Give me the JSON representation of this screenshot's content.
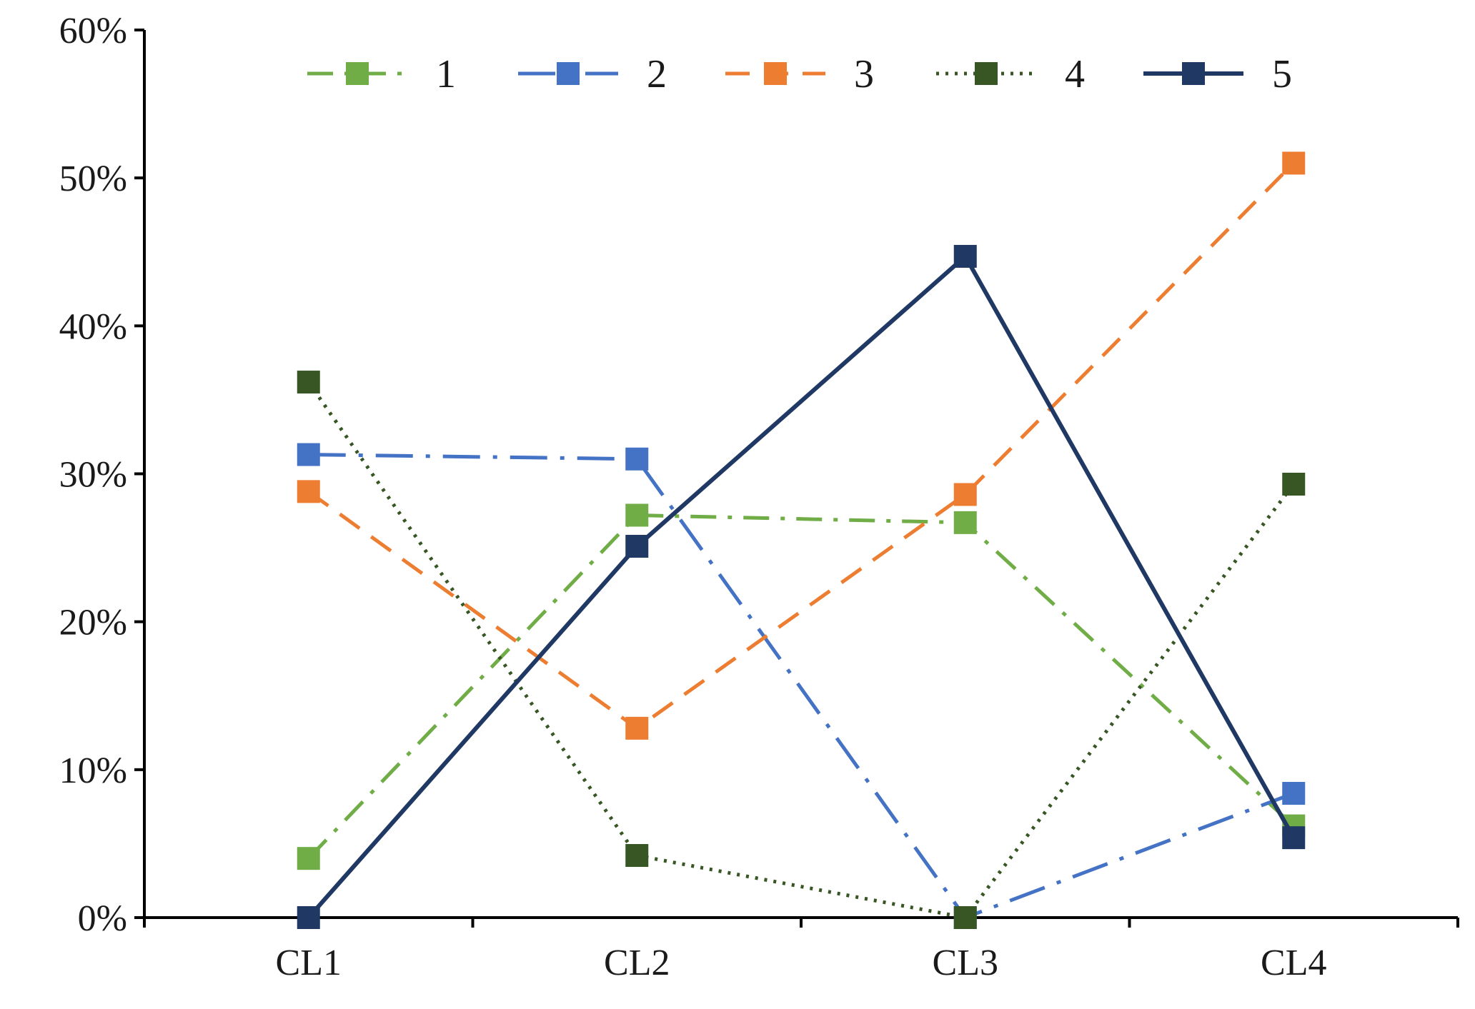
{
  "chart_data": {
    "type": "line",
    "categories": [
      "CL1",
      "CL2",
      "CL3",
      "CL4"
    ],
    "ylim": [
      0,
      0.6
    ],
    "yticks": [
      0,
      0.1,
      0.2,
      0.3,
      0.4,
      0.5,
      0.6
    ],
    "ytick_labels": [
      "0%",
      "10%",
      "20%",
      "30%",
      "40%",
      "50%",
      "60%"
    ],
    "grid": false,
    "legend_position": "top",
    "series": [
      {
        "name": "1",
        "values": [
          0.04,
          0.272,
          0.267,
          0.062
        ],
        "color": "#70ad47",
        "dash": "dash-dot",
        "marker": "square"
      },
      {
        "name": "2",
        "values": [
          0.313,
          0.31,
          0.0,
          0.084
        ],
        "color": "#4472c4",
        "dash": "long-dash-dot",
        "marker": "square"
      },
      {
        "name": "3",
        "values": [
          0.288,
          0.128,
          0.286,
          0.51
        ],
        "color": "#ed7d31",
        "dash": "dash",
        "marker": "square"
      },
      {
        "name": "4",
        "values": [
          0.362,
          0.042,
          0.0,
          0.293
        ],
        "color": "#375623",
        "dash": "dot",
        "marker": "square"
      },
      {
        "name": "5",
        "values": [
          0.0,
          0.251,
          0.447,
          0.054
        ],
        "color": "#203864",
        "dash": "solid",
        "marker": "square"
      }
    ]
  }
}
